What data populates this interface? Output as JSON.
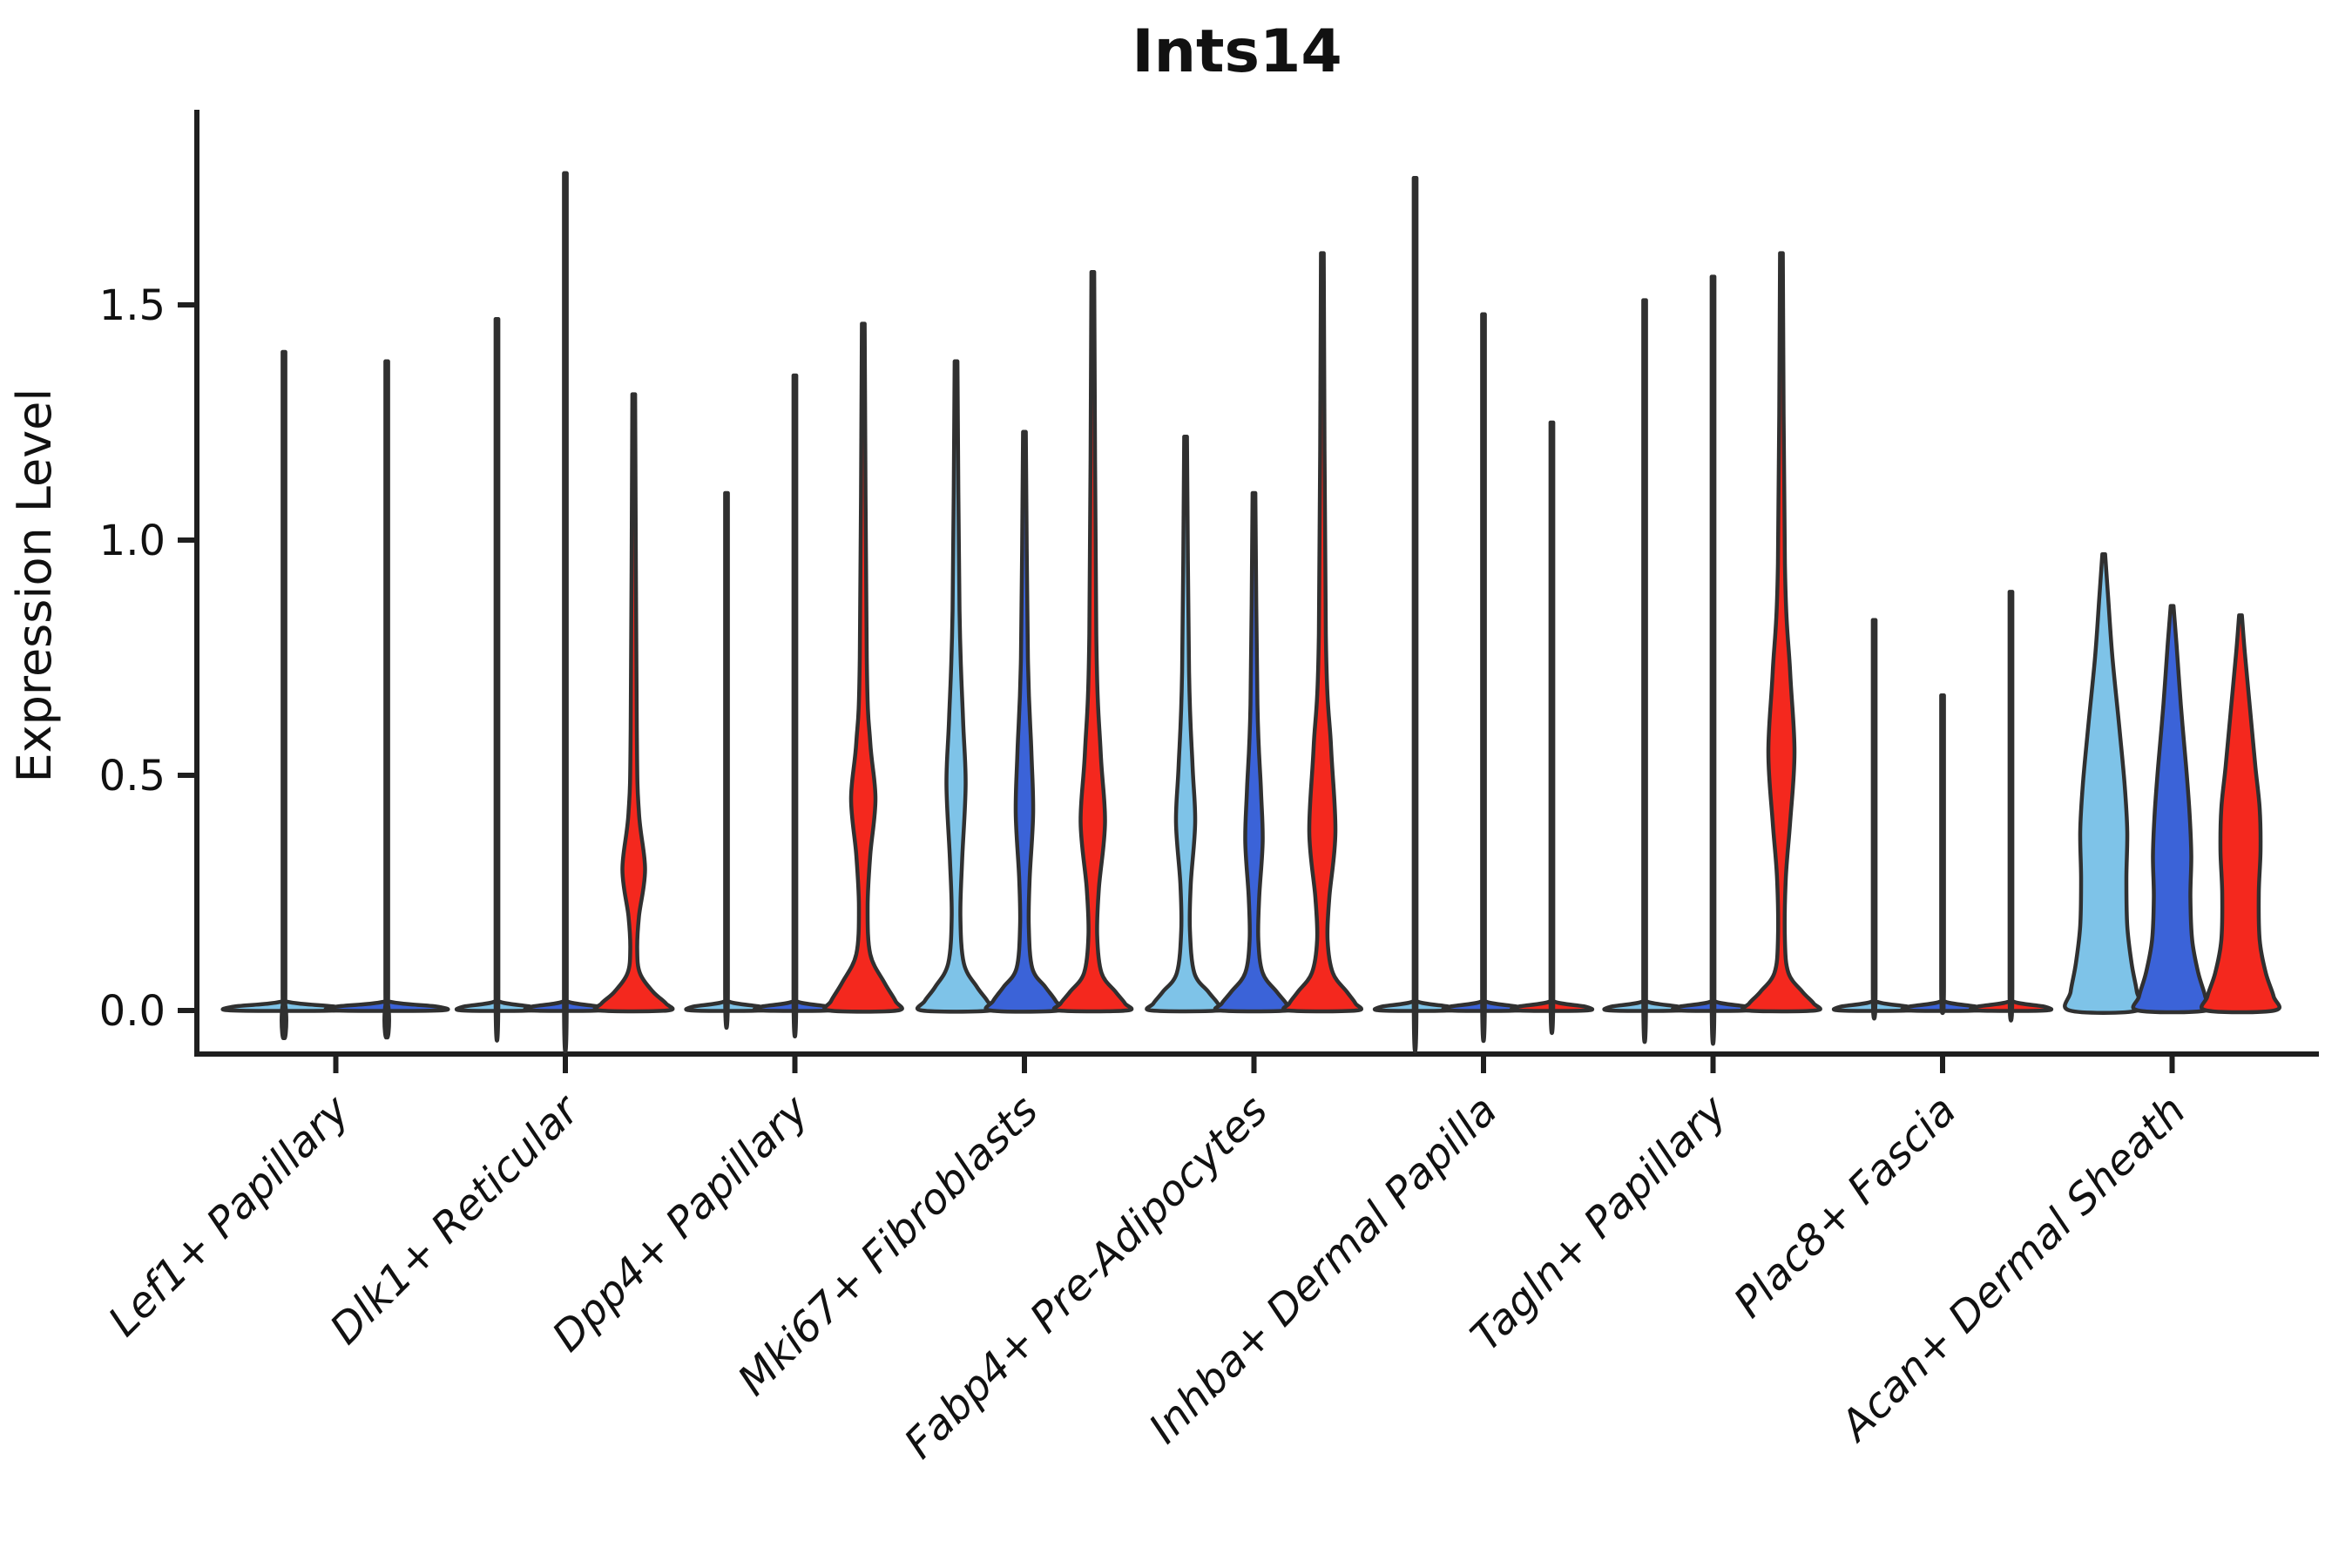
{
  "chart_data": {
    "type": "violin",
    "title": "Ints14",
    "ylabel": "Expression Level",
    "xlabel": "",
    "yticks": [
      "0.0",
      "0.5",
      "1.0",
      "1.5"
    ],
    "ytick_values": [
      0.0,
      0.5,
      1.0,
      1.5
    ],
    "ylim": [
      0.0,
      1.9
    ],
    "grid": false,
    "legend": "none",
    "series_colors": [
      "#7EC3E8",
      "#3B63D8",
      "#F4281E"
    ],
    "outline_color": "#303030",
    "axis_color": "#1F1F1F",
    "categories": [
      "Lef1+ Papillary",
      "Dlk1+ Reticular",
      "Dpp4+ Papillary",
      "Mki67+ Fibroblasts",
      "Fabp4+ Pre-Adipocytes",
      "Inhba+ Dermal Papilla",
      "Tagln+ Papillary",
      "Plac8+ Fascia",
      "Acan+ Dermal Sheath"
    ],
    "max_expression_by_series": [
      [
        1.4,
        1.38,
        null
      ],
      [
        1.47,
        1.78,
        1.31
      ],
      [
        1.1,
        1.35,
        1.46
      ],
      [
        1.38,
        1.23,
        1.57
      ],
      [
        1.22,
        1.1,
        1.61
      ],
      [
        1.77,
        1.48,
        1.25
      ],
      [
        1.51,
        1.56,
        1.61
      ],
      [
        0.83,
        0.67,
        0.89
      ],
      [
        0.97,
        0.86,
        0.84
      ]
    ],
    "groups": [
      {
        "label": "Lef1+ Papillary",
        "violins": [
          {
            "s": 0,
            "dx": -59.5,
            "hs": 59,
            "max": 1.4,
            "flat": true
          },
          {
            "s": 1,
            "dx": 58.5,
            "hs": 59,
            "max": 1.38,
            "flat": true
          }
        ]
      },
      {
        "label": "Dlk1+ Reticular",
        "violins": [
          {
            "s": 0,
            "dx": -78.5,
            "hs": 39,
            "max": 1.47,
            "flat": true
          },
          {
            "s": 1,
            "dx": 0,
            "hs": 39,
            "max": 1.78,
            "flat": true
          },
          {
            "s": 2,
            "dx": 78.5,
            "hs": 39,
            "max": 1.31,
            "flat": false,
            "profile": [
              [
                1.31,
                1.6
              ],
              [
                0.6,
                3.5
              ],
              [
                0.42,
                6
              ],
              [
                0.3,
                13
              ],
              [
                0.2,
                6
              ],
              [
                0.13,
                4
              ],
              [
                0.08,
                7
              ],
              [
                0.04,
                22
              ],
              [
                0.015,
                37
              ],
              [
                0,
                39
              ]
            ]
          }
        ]
      },
      {
        "label": "Dpp4+ Papillary",
        "violins": [
          {
            "s": 0,
            "dx": -78.5,
            "hs": 39,
            "max": 1.1,
            "flat": true
          },
          {
            "s": 1,
            "dx": 0,
            "hs": 39,
            "max": 1.35,
            "flat": true
          },
          {
            "s": 2,
            "dx": 78.5,
            "hs": 39,
            "max": 1.46,
            "flat": false,
            "profile": [
              [
                1.46,
                1.6
              ],
              [
                0.75,
                4
              ],
              [
                0.57,
                8
              ],
              [
                0.45,
                14
              ],
              [
                0.33,
                8
              ],
              [
                0.22,
                5
              ],
              [
                0.12,
                8
              ],
              [
                0.06,
                24
              ],
              [
                0.02,
                37
              ],
              [
                0,
                39
              ]
            ]
          }
        ]
      },
      {
        "label": "Mki67+ Fibroblasts",
        "violins": [
          {
            "s": 0,
            "dx": -78.5,
            "hs": 39,
            "max": 1.38,
            "flat": false,
            "profile": [
              [
                1.38,
                1.6
              ],
              [
                0.85,
                4
              ],
              [
                0.62,
                8
              ],
              [
                0.48,
                11
              ],
              [
                0.32,
                7
              ],
              [
                0.2,
                5
              ],
              [
                0.1,
                9
              ],
              [
                0.05,
                24
              ],
              [
                0.02,
                36
              ],
              [
                0,
                39
              ]
            ]
          },
          {
            "s": 1,
            "dx": 0,
            "hs": 39,
            "max": 1.23,
            "flat": false,
            "profile": [
              [
                1.23,
                1.6
              ],
              [
                0.75,
                4
              ],
              [
                0.55,
                8
              ],
              [
                0.42,
                10
              ],
              [
                0.28,
                6
              ],
              [
                0.18,
                5
              ],
              [
                0.09,
                9
              ],
              [
                0.05,
                24
              ],
              [
                0.02,
                36
              ],
              [
                0,
                39
              ]
            ]
          },
          {
            "s": 2,
            "dx": 78.5,
            "hs": 39,
            "max": 1.57,
            "flat": false,
            "profile": [
              [
                1.57,
                1.6
              ],
              [
                0.8,
                4
              ],
              [
                0.55,
                9
              ],
              [
                0.4,
                14
              ],
              [
                0.26,
                7
              ],
              [
                0.16,
                5
              ],
              [
                0.08,
                10
              ],
              [
                0.04,
                26
              ],
              [
                0.015,
                37
              ],
              [
                0,
                39
              ]
            ]
          }
        ]
      },
      {
        "label": "Fabp4+ Pre-Adipocytes",
        "violins": [
          {
            "s": 0,
            "dx": -78.5,
            "hs": 39,
            "max": 1.22,
            "flat": false,
            "profile": [
              [
                1.22,
                1.6
              ],
              [
                0.72,
                4
              ],
              [
                0.52,
                8
              ],
              [
                0.4,
                11
              ],
              [
                0.27,
                6
              ],
              [
                0.17,
                5
              ],
              [
                0.08,
                10
              ],
              [
                0.04,
                26
              ],
              [
                0.015,
                37
              ],
              [
                0,
                39
              ]
            ]
          },
          {
            "s": 1,
            "dx": 0,
            "hs": 39,
            "max": 1.1,
            "flat": false,
            "profile": [
              [
                1.1,
                1.6
              ],
              [
                0.65,
                4
              ],
              [
                0.47,
                8
              ],
              [
                0.36,
                10
              ],
              [
                0.24,
                6
              ],
              [
                0.15,
                5
              ],
              [
                0.08,
                10
              ],
              [
                0.04,
                26
              ],
              [
                0.015,
                37
              ],
              [
                0,
                39
              ]
            ]
          },
          {
            "s": 2,
            "dx": 78.5,
            "hs": 39,
            "max": 1.61,
            "flat": false,
            "profile": [
              [
                1.61,
                1.6
              ],
              [
                0.8,
                4
              ],
              [
                0.56,
                10
              ],
              [
                0.38,
                15
              ],
              [
                0.24,
                8
              ],
              [
                0.15,
                6
              ],
              [
                0.08,
                12
              ],
              [
                0.04,
                28
              ],
              [
                0.015,
                38
              ],
              [
                0,
                39
              ]
            ]
          }
        ]
      },
      {
        "label": "Inhba+ Dermal Papilla",
        "violins": [
          {
            "s": 0,
            "dx": -78.5,
            "hs": 39,
            "max": 1.77,
            "flat": true
          },
          {
            "s": 1,
            "dx": 0,
            "hs": 39,
            "max": 1.48,
            "flat": true
          },
          {
            "s": 2,
            "dx": 78.5,
            "hs": 39,
            "max": 1.25,
            "flat": true
          }
        ]
      },
      {
        "label": "Tagln+ Papillary",
        "violins": [
          {
            "s": 0,
            "dx": -78.5,
            "hs": 39,
            "max": 1.51,
            "flat": true
          },
          {
            "s": 1,
            "dx": 0,
            "hs": 39,
            "max": 1.56,
            "flat": true
          },
          {
            "s": 2,
            "dx": 78.5,
            "hs": 39,
            "max": 1.61,
            "flat": false,
            "profile": [
              [
                1.61,
                1.6
              ],
              [
                0.95,
                4
              ],
              [
                0.72,
                10
              ],
              [
                0.55,
                15
              ],
              [
                0.4,
                10
              ],
              [
                0.28,
                5
              ],
              [
                0.15,
                4
              ],
              [
                0.08,
                8
              ],
              [
                0.04,
                24
              ],
              [
                0.015,
                37
              ],
              [
                0,
                39
              ]
            ]
          }
        ]
      },
      {
        "label": "Plac8+ Fascia",
        "violins": [
          {
            "s": 0,
            "dx": -78.5,
            "hs": 39,
            "max": 0.83,
            "flat": true
          },
          {
            "s": 1,
            "dx": 0,
            "hs": 39,
            "max": 0.67,
            "flat": true
          },
          {
            "s": 2,
            "dx": 78.5,
            "hs": 39,
            "max": 0.89,
            "flat": true
          }
        ]
      },
      {
        "label": "Acan+ Dermal Sheath",
        "violins": [
          {
            "s": 0,
            "dx": -78.5,
            "hs": 39,
            "max": 0.97,
            "flat": false,
            "profile": [
              [
                0.97,
                1.6
              ],
              [
                0.88,
                5
              ],
              [
                0.75,
                10
              ],
              [
                0.6,
                18
              ],
              [
                0.48,
                24
              ],
              [
                0.38,
                27
              ],
              [
                0.28,
                26
              ],
              [
                0.18,
                27
              ],
              [
                0.1,
                32
              ],
              [
                0.04,
                38
              ],
              [
                0,
                39
              ]
            ]
          },
          {
            "s": 1,
            "dx": 0,
            "hs": 39,
            "max": 0.86,
            "flat": false,
            "profile": [
              [
                0.86,
                1.6
              ],
              [
                0.78,
                5
              ],
              [
                0.65,
                10
              ],
              [
                0.52,
                16
              ],
              [
                0.42,
                20
              ],
              [
                0.33,
                22
              ],
              [
                0.24,
                21
              ],
              [
                0.15,
                23
              ],
              [
                0.08,
                30
              ],
              [
                0.03,
                38
              ],
              [
                0,
                39
              ]
            ]
          },
          {
            "s": 2,
            "dx": 78.5,
            "hs": 39,
            "max": 0.84,
            "flat": false,
            "profile": [
              [
                0.84,
                1.6
              ],
              [
                0.76,
                5
              ],
              [
                0.64,
                11
              ],
              [
                0.52,
                17
              ],
              [
                0.43,
                22
              ],
              [
                0.34,
                23
              ],
              [
                0.25,
                21
              ],
              [
                0.15,
                22
              ],
              [
                0.08,
                29
              ],
              [
                0.03,
                38
              ],
              [
                0,
                39
              ]
            ]
          }
        ]
      }
    ]
  }
}
